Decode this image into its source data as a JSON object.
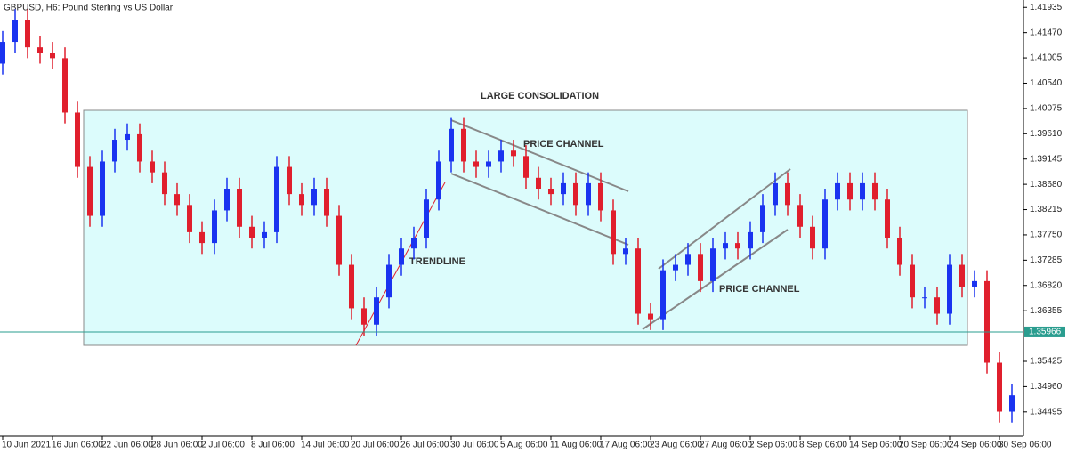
{
  "chart_data": {
    "type": "candlestick",
    "title": "GBPUSD, H6:  Pound Sterling vs US Dollar",
    "categories": [
      "10 Jun 2021",
      null,
      null,
      null,
      "16 Jun 06:00",
      null,
      null,
      null,
      "22 Jun 06:00",
      null,
      null,
      null,
      "28 Jun 06:00",
      null,
      null,
      null,
      "2 Jul 06:00",
      null,
      null,
      null,
      "8 Jul 06:00",
      null,
      null,
      null,
      "14 Jul 06:00",
      null,
      null,
      null,
      "20 Jul 06:00",
      null,
      null,
      null,
      "26 Jul 06:00",
      null,
      null,
      null,
      "30 Jul 06:00",
      null,
      null,
      null,
      "5 Aug 06:00",
      null,
      null,
      null,
      "11 Aug 06:00",
      null,
      null,
      null,
      "17 Aug 06:00",
      null,
      null,
      null,
      "23 Aug 06:00",
      null,
      null,
      null,
      "27 Aug 06:00",
      null,
      null,
      null,
      "2 Sep 06:00",
      null,
      null,
      null,
      "8 Sep 06:00",
      null,
      null,
      null,
      "14 Sep 06:00",
      null,
      null,
      null,
      "20 Sep 06:00",
      null,
      null,
      null,
      "24 Sep 06:00",
      null,
      null,
      null,
      "30 Sep 06:00",
      null
    ],
    "open": [
      1.409,
      1.413,
      1.417,
      1.412,
      1.411,
      1.41,
      1.4,
      1.39,
      1.381,
      1.391,
      1.395,
      1.396,
      1.391,
      1.389,
      1.385,
      1.383,
      1.378,
      1.376,
      1.382,
      1.386,
      1.379,
      1.377,
      1.378,
      1.39,
      1.385,
      1.383,
      1.386,
      1.381,
      1.372,
      1.364,
      1.361,
      1.366,
      1.372,
      1.375,
      1.377,
      1.384,
      1.391,
      1.397,
      1.391,
      1.39,
      1.391,
      1.393,
      1.392,
      1.388,
      1.386,
      1.385,
      1.387,
      1.383,
      1.387,
      1.382,
      1.374,
      1.375,
      1.363,
      1.362,
      1.371,
      1.372,
      1.374,
      1.369,
      1.375,
      1.376,
      1.375,
      1.378,
      1.383,
      1.387,
      1.383,
      1.379,
      1.375,
      1.384,
      1.387,
      1.384,
      1.387,
      1.384,
      1.377,
      1.372,
      1.366,
      1.366,
      1.363,
      1.372,
      1.368,
      1.369,
      1.354,
      1.345
    ],
    "high": [
      1.415,
      1.419,
      1.419,
      1.414,
      1.413,
      1.412,
      1.402,
      1.392,
      1.393,
      1.397,
      1.398,
      1.398,
      1.393,
      1.391,
      1.387,
      1.385,
      1.38,
      1.384,
      1.388,
      1.388,
      1.381,
      1.38,
      1.392,
      1.392,
      1.387,
      1.388,
      1.388,
      1.383,
      1.374,
      1.366,
      1.368,
      1.374,
      1.377,
      1.379,
      1.386,
      1.393,
      1.399,
      1.399,
      1.393,
      1.393,
      1.395,
      1.395,
      1.394,
      1.39,
      1.388,
      1.389,
      1.389,
      1.389,
      1.389,
      1.384,
      1.377,
      1.377,
      1.365,
      1.373,
      1.374,
      1.376,
      1.376,
      1.377,
      1.378,
      1.378,
      1.38,
      1.385,
      1.389,
      1.389,
      1.385,
      1.381,
      1.386,
      1.389,
      1.389,
      1.389,
      1.389,
      1.386,
      1.379,
      1.374,
      1.368,
      1.368,
      1.374,
      1.374,
      1.371,
      1.371,
      1.356,
      1.35
    ],
    "low": [
      1.407,
      1.411,
      1.41,
      1.409,
      1.408,
      1.398,
      1.388,
      1.379,
      1.379,
      1.389,
      1.393,
      1.389,
      1.387,
      1.383,
      1.381,
      1.376,
      1.374,
      1.374,
      1.38,
      1.377,
      1.375,
      1.375,
      1.376,
      1.383,
      1.381,
      1.381,
      1.379,
      1.37,
      1.362,
      1.359,
      1.359,
      1.364,
      1.37,
      1.373,
      1.375,
      1.382,
      1.389,
      1.389,
      1.388,
      1.388,
      1.389,
      1.39,
      1.386,
      1.384,
      1.383,
      1.383,
      1.381,
      1.381,
      1.38,
      1.372,
      1.372,
      1.361,
      1.36,
      1.36,
      1.369,
      1.37,
      1.367,
      1.367,
      1.373,
      1.373,
      1.373,
      1.376,
      1.381,
      1.381,
      1.377,
      1.373,
      1.373,
      1.382,
      1.382,
      1.382,
      1.382,
      1.375,
      1.37,
      1.364,
      1.364,
      1.361,
      1.361,
      1.366,
      1.366,
      1.352,
      1.343,
      1.343
    ],
    "close": [
      1.413,
      1.417,
      1.412,
      1.411,
      1.41,
      1.4,
      1.39,
      1.381,
      1.391,
      1.395,
      1.396,
      1.391,
      1.389,
      1.385,
      1.383,
      1.378,
      1.376,
      1.382,
      1.386,
      1.379,
      1.377,
      1.378,
      1.39,
      1.385,
      1.383,
      1.386,
      1.381,
      1.372,
      1.364,
      1.361,
      1.366,
      1.372,
      1.375,
      1.377,
      1.384,
      1.391,
      1.397,
      1.391,
      1.39,
      1.391,
      1.393,
      1.392,
      1.388,
      1.386,
      1.385,
      1.387,
      1.383,
      1.387,
      1.382,
      1.374,
      1.375,
      1.363,
      1.362,
      1.371,
      1.372,
      1.374,
      1.369,
      1.375,
      1.376,
      1.375,
      1.378,
      1.383,
      1.387,
      1.383,
      1.379,
      1.375,
      1.384,
      1.387,
      1.384,
      1.387,
      1.384,
      1.377,
      1.372,
      1.366,
      1.366,
      1.363,
      1.372,
      1.368,
      1.369,
      1.354,
      1.345,
      1.348
    ],
    "up_color": "#1a33f0",
    "down_color": "#e01f2d",
    "ylim": [
      1.3405,
      1.4207
    ],
    "yticks": [
      1.41935,
      {
        "value": 1.4147,
        "label": "1.41470"
      },
      1.41005,
      {
        "value": 1.4054,
        "label": "1.40540"
      },
      1.40075,
      {
        "value": 1.3961,
        "label": "1.39610"
      },
      1.39145,
      {
        "value": 1.3868,
        "label": "1.38680"
      },
      1.38215,
      {
        "value": 1.3775,
        "label": "1.37750"
      },
      1.37285,
      {
        "value": 1.3682,
        "label": "1.36820"
      },
      1.36355,
      1.35425,
      {
        "value": 1.3496,
        "label": "1.34960"
      },
      1.34495
    ],
    "current_price": 1.35966,
    "current_color": "#2a9d8f",
    "annotations": [
      "LARGE CONSOLIDATION",
      "PRICE CHANNEL",
      "TRENDLINE",
      "PRICE CHANNEL"
    ]
  }
}
